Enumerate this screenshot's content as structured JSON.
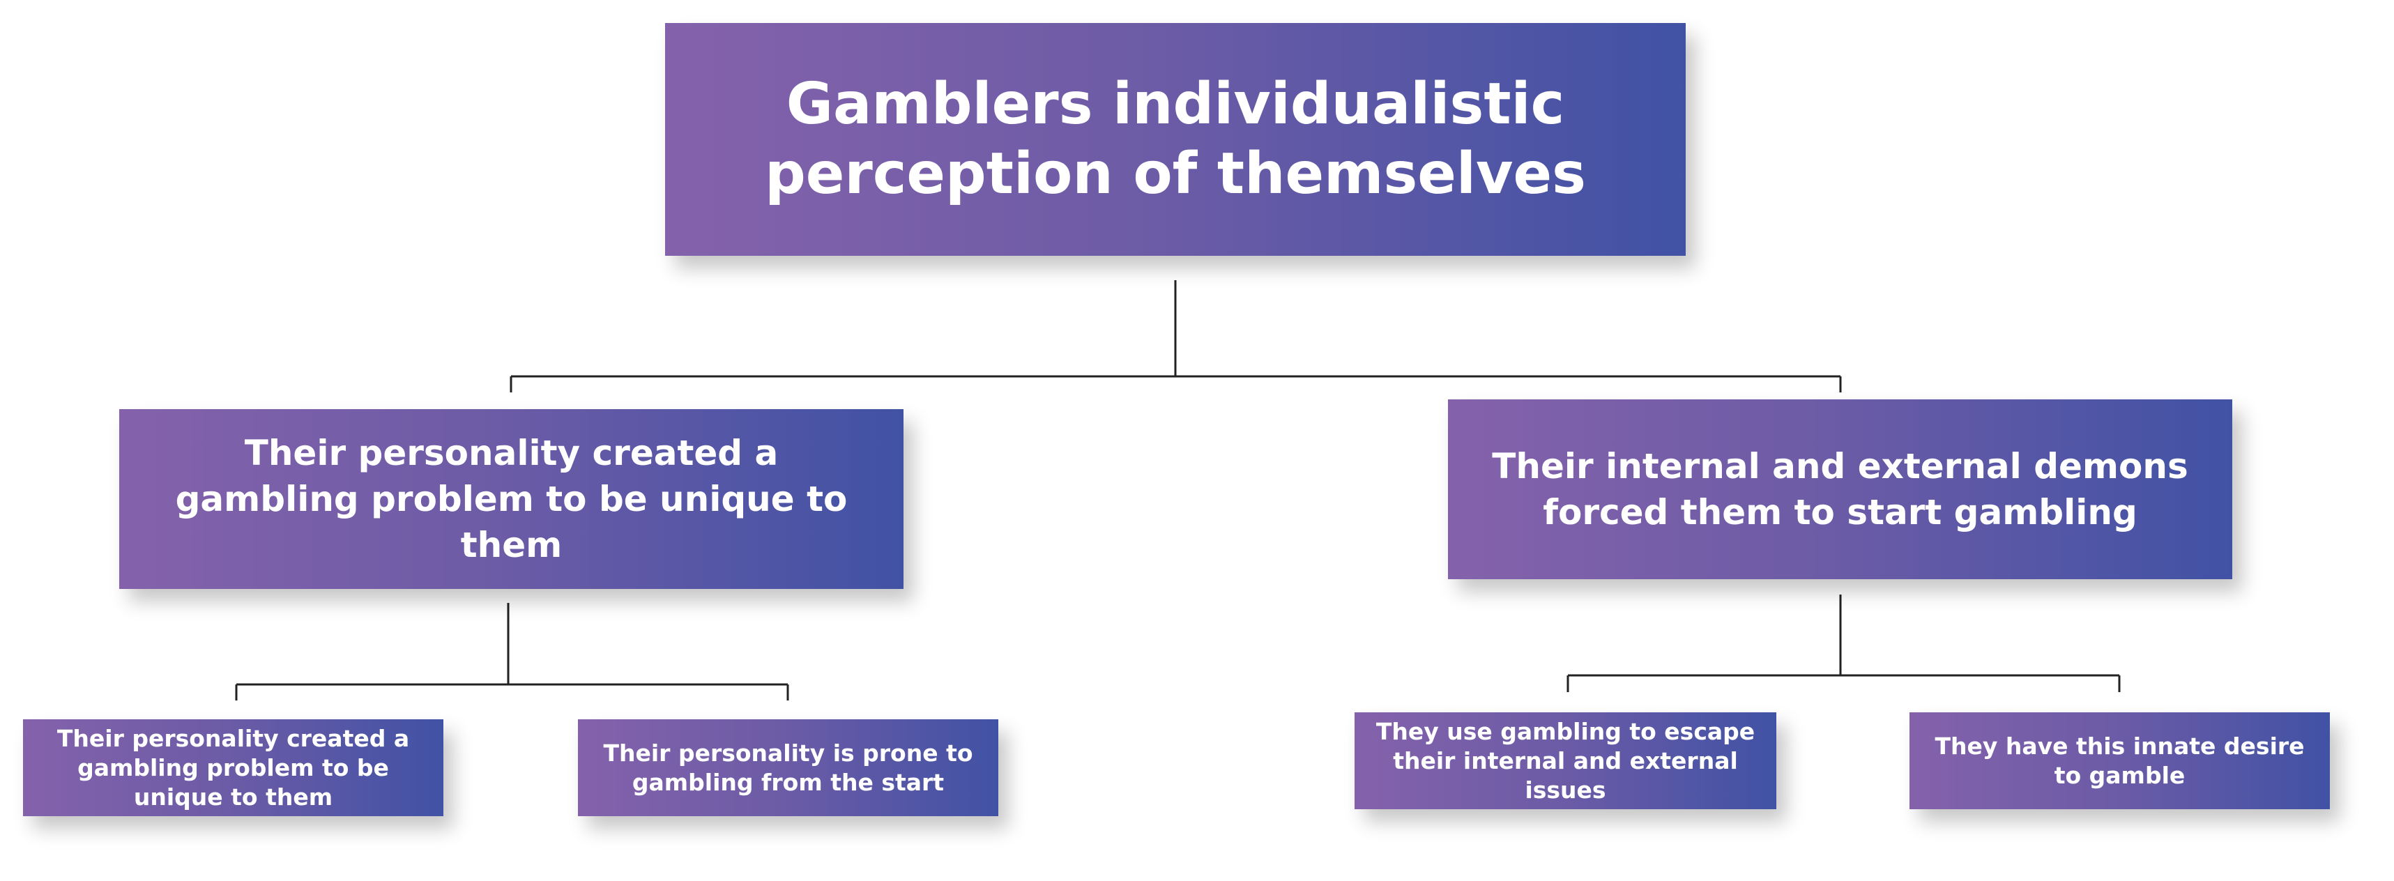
{
  "diagram": {
    "root": {
      "label": "Gamblers individualistic perception of themselves"
    },
    "branches": [
      {
        "label": "Their personality created a gambling problem to be unique to them",
        "children": [
          {
            "label": "Their personality created a gambling problem to be unique to them"
          },
          {
            "label": "Their personality is prone to gambling from the start"
          }
        ]
      },
      {
        "label": "Their internal and external demons forced them to start gambling",
        "children": [
          {
            "label": "They use gambling to escape their internal and external issues"
          },
          {
            "label": "They have this innate desire to gamble"
          }
        ]
      }
    ],
    "colors": {
      "box_gradient_start": "#8462ab",
      "box_gradient_end": "#4152a5",
      "text": "#ffffff",
      "connector": "#222222"
    }
  }
}
